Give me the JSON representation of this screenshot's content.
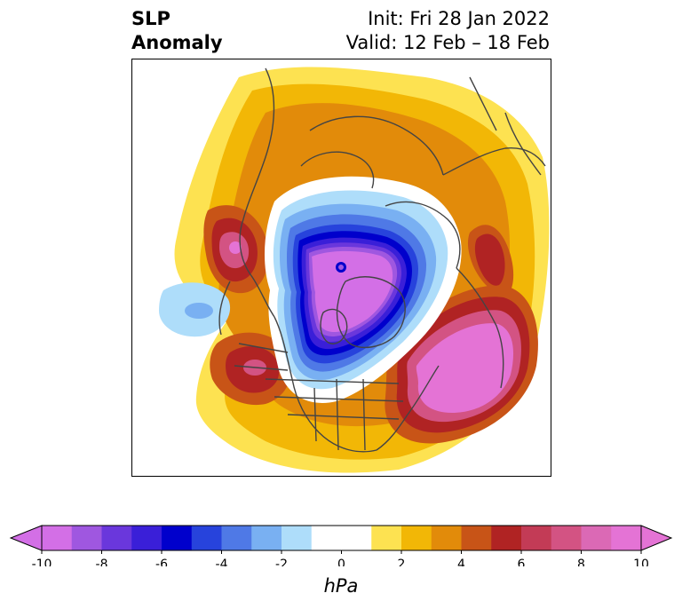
{
  "title": {
    "variable": "SLP",
    "subtitle": "Anomaly",
    "init": "Init: Fri 28 Jan 2022",
    "valid": "Valid: 12 Feb – 18 Feb"
  },
  "colorbar": {
    "unit": "hPa",
    "ticks": [
      "-10",
      "-8",
      "-6",
      "-4",
      "-2",
      "0",
      "2",
      "4",
      "6",
      "8",
      "10"
    ],
    "colors": [
      "#d36fe6",
      "#9f57e0",
      "#6a37dc",
      "#3a1fd8",
      "#0000cc",
      "#2743dc",
      "#4f79e6",
      "#79b0f2",
      "#aeddfa",
      "#ffffff",
      "#ffffff",
      "#fde251",
      "#f2b706",
      "#e28b0a",
      "#c85417",
      "#b02323",
      "#c33b56",
      "#d35383",
      "#db69b5",
      "#e473d5"
    ],
    "under_color": "#d36fe6",
    "over_color": "#e473d5"
  }
}
